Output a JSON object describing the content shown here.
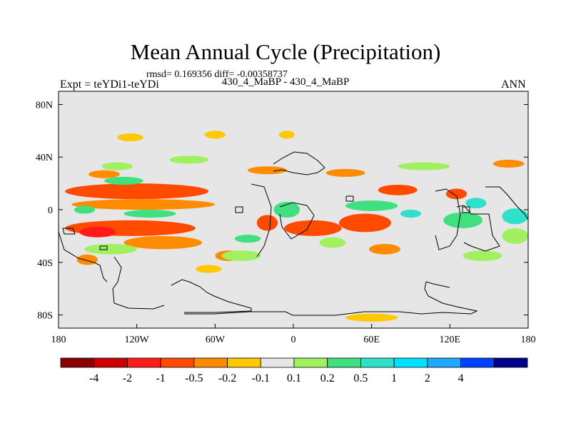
{
  "header": {
    "title": "Mean Annual Cycle (Precipitation)",
    "stats": "rmsd= 0.169356 diff= -0.00358737",
    "subtitle": "430_4_MaBP - 430_4_MaBP",
    "experiment": "Expt = teYDi1-teYDi",
    "season": "ANN"
  },
  "chart_data": {
    "type": "heatmap",
    "title": "Mean Annual Cycle (Precipitation)",
    "subtitle": "430_4_MaBP - 430_4_MaBP",
    "rmsd": 0.169356,
    "diff": -0.00358737,
    "xlabel": "",
    "ylabel": "",
    "xlim": [
      -180,
      180
    ],
    "ylim": [
      -90,
      90
    ],
    "x_ticks": [
      {
        "value": -180,
        "label": "180"
      },
      {
        "value": -120,
        "label": "120W"
      },
      {
        "value": -60,
        "label": "60W"
      },
      {
        "value": 0,
        "label": "0"
      },
      {
        "value": 60,
        "label": "60E"
      },
      {
        "value": 120,
        "label": "120E"
      },
      {
        "value": 180,
        "label": "180"
      }
    ],
    "y_ticks": [
      {
        "value": 80,
        "label": "80N"
      },
      {
        "value": 40,
        "label": "40N"
      },
      {
        "value": 0,
        "label": "0"
      },
      {
        "value": -40,
        "label": "40S"
      },
      {
        "value": -80,
        "label": "80S"
      }
    ],
    "background_color": "#e6e6e6",
    "colorbar": {
      "colors": [
        "#8b0000",
        "#cc0000",
        "#ff1a1a",
        "#ff4a00",
        "#ff8c00",
        "#ffc800",
        "#e6e6e6",
        "#a0f060",
        "#40e080",
        "#30e0c8",
        "#00e0ff",
        "#20a8ff",
        "#0040ff",
        "#00008b"
      ],
      "labels": [
        "-4",
        "-2",
        "-1",
        "-0.5",
        "-0.2",
        "-0.1",
        "0.1",
        "0.2",
        "0.5",
        "1",
        "2",
        "4"
      ]
    },
    "anomalies": [
      {
        "lon": -120,
        "lat": 14,
        "rx": 55,
        "ry": 6,
        "level": "-0.5"
      },
      {
        "lon": -125,
        "lat": -14,
        "rx": 50,
        "ry": 6,
        "level": "-0.5"
      },
      {
        "lon": -150,
        "lat": -17,
        "rx": 14,
        "ry": 4,
        "level": "-1"
      },
      {
        "lon": -20,
        "lat": -10,
        "rx": 8,
        "ry": 6,
        "level": "-0.5"
      },
      {
        "lon": 15,
        "lat": -14,
        "rx": 22,
        "ry": 6,
        "level": "-0.5"
      },
      {
        "lon": 55,
        "lat": -10,
        "rx": 20,
        "ry": 7,
        "level": "-0.5"
      },
      {
        "lon": 80,
        "lat": 15,
        "rx": 15,
        "ry": 4,
        "level": "-0.5"
      },
      {
        "lon": 125,
        "lat": 12,
        "rx": 8,
        "ry": 4,
        "level": "-0.5"
      },
      {
        "lon": -115,
        "lat": 4,
        "rx": 55,
        "ry": 4,
        "level": "-0.2"
      },
      {
        "lon": -100,
        "lat": -25,
        "rx": 30,
        "ry": 5,
        "level": "-0.2"
      },
      {
        "lon": -145,
        "lat": 27,
        "rx": 12,
        "ry": 3,
        "level": "-0.2"
      },
      {
        "lon": -20,
        "lat": 30,
        "rx": 15,
        "ry": 3,
        "level": "-0.2"
      },
      {
        "lon": -50,
        "lat": -35,
        "rx": 10,
        "ry": 4,
        "level": "-0.2"
      },
      {
        "lon": -158,
        "lat": -38,
        "rx": 8,
        "ry": 4,
        "level": "-0.2"
      },
      {
        "lon": 40,
        "lat": 28,
        "rx": 15,
        "ry": 3,
        "level": "-0.2"
      },
      {
        "lon": 165,
        "lat": 35,
        "rx": 12,
        "ry": 3,
        "level": "-0.2"
      },
      {
        "lon": 70,
        "lat": -30,
        "rx": 12,
        "ry": 4,
        "level": "-0.2"
      },
      {
        "lon": 60,
        "lat": -82,
        "rx": 20,
        "ry": 3,
        "level": "-0.1"
      },
      {
        "lon": -125,
        "lat": 55,
        "rx": 10,
        "ry": 3,
        "level": "-0.1"
      },
      {
        "lon": -60,
        "lat": 57,
        "rx": 8,
        "ry": 3,
        "level": "-0.1"
      },
      {
        "lon": -5,
        "lat": 57,
        "rx": 6,
        "ry": 3,
        "level": "-0.1"
      },
      {
        "lon": -65,
        "lat": -45,
        "rx": 10,
        "ry": 3,
        "level": "-0.1"
      },
      {
        "lon": -135,
        "lat": 33,
        "rx": 12,
        "ry": 3,
        "level": "0.1"
      },
      {
        "lon": -80,
        "lat": 38,
        "rx": 15,
        "ry": 3,
        "level": "0.1"
      },
      {
        "lon": -140,
        "lat": -30,
        "rx": 20,
        "ry": 4,
        "level": "0.1"
      },
      {
        "lon": -40,
        "lat": -35,
        "rx": 15,
        "ry": 4,
        "level": "0.1"
      },
      {
        "lon": 30,
        "lat": -25,
        "rx": 10,
        "ry": 4,
        "level": "0.1"
      },
      {
        "lon": 100,
        "lat": 33,
        "rx": 20,
        "ry": 3,
        "level": "0.1"
      },
      {
        "lon": 145,
        "lat": -35,
        "rx": 15,
        "ry": 4,
        "level": "0.1"
      },
      {
        "lon": 170,
        "lat": -20,
        "rx": 10,
        "ry": 6,
        "level": "0.1"
      },
      {
        "lon": -160,
        "lat": 0,
        "rx": 8,
        "ry": 3,
        "level": "0.2"
      },
      {
        "lon": -110,
        "lat": -3,
        "rx": 20,
        "ry": 3,
        "level": "0.2"
      },
      {
        "lon": -5,
        "lat": 0,
        "rx": 10,
        "ry": 6,
        "level": "0.2"
      },
      {
        "lon": 60,
        "lat": 3,
        "rx": 20,
        "ry": 4,
        "level": "0.2"
      },
      {
        "lon": 130,
        "lat": -8,
        "rx": 15,
        "ry": 6,
        "level": "0.2"
      },
      {
        "lon": -130,
        "lat": 22,
        "rx": 15,
        "ry": 3,
        "level": "0.2"
      },
      {
        "lon": -35,
        "lat": -22,
        "rx": 10,
        "ry": 3,
        "level": "0.2"
      },
      {
        "lon": 170,
        "lat": -5,
        "rx": 10,
        "ry": 6,
        "level": "0.5"
      },
      {
        "lon": 140,
        "lat": 5,
        "rx": 8,
        "ry": 4,
        "level": "0.5"
      },
      {
        "lon": 90,
        "lat": -3,
        "rx": 8,
        "ry": 3,
        "level": "0.5"
      }
    ]
  }
}
